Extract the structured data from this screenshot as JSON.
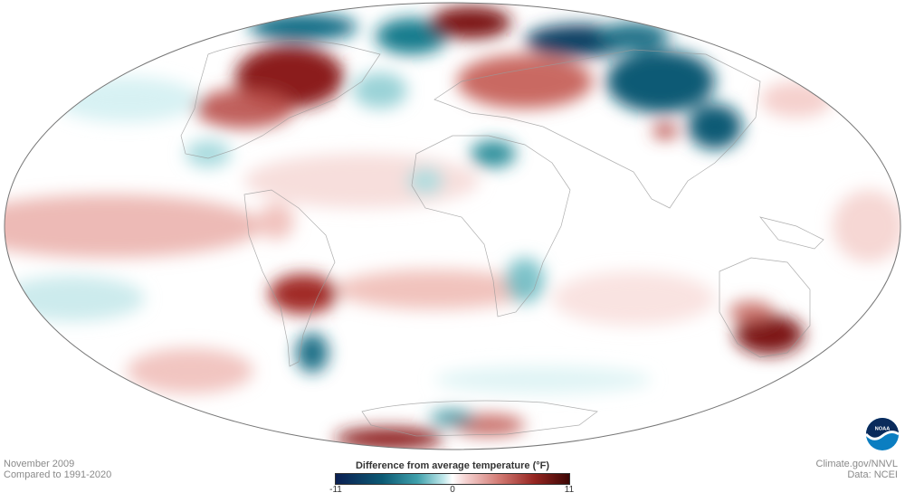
{
  "caption": {
    "month": "November 2009",
    "baseline": "Compared to 1991-2020",
    "credit": "Climate.gov/NNVL",
    "source": "Data: NCEI"
  },
  "legend": {
    "title": "Difference from average temperature",
    "unit": "(°F)",
    "min_label": "-11",
    "mid_label": "0",
    "max_label": "11",
    "min": -11,
    "max": 11
  },
  "logo": {
    "text": "NOAA"
  },
  "colors": {
    "cold_extreme": "#0b1f52",
    "cold": "#0c5a74",
    "neutral": "#ffffff",
    "warm": "#d27a73",
    "warm_extreme": "#3d0705"
  }
}
